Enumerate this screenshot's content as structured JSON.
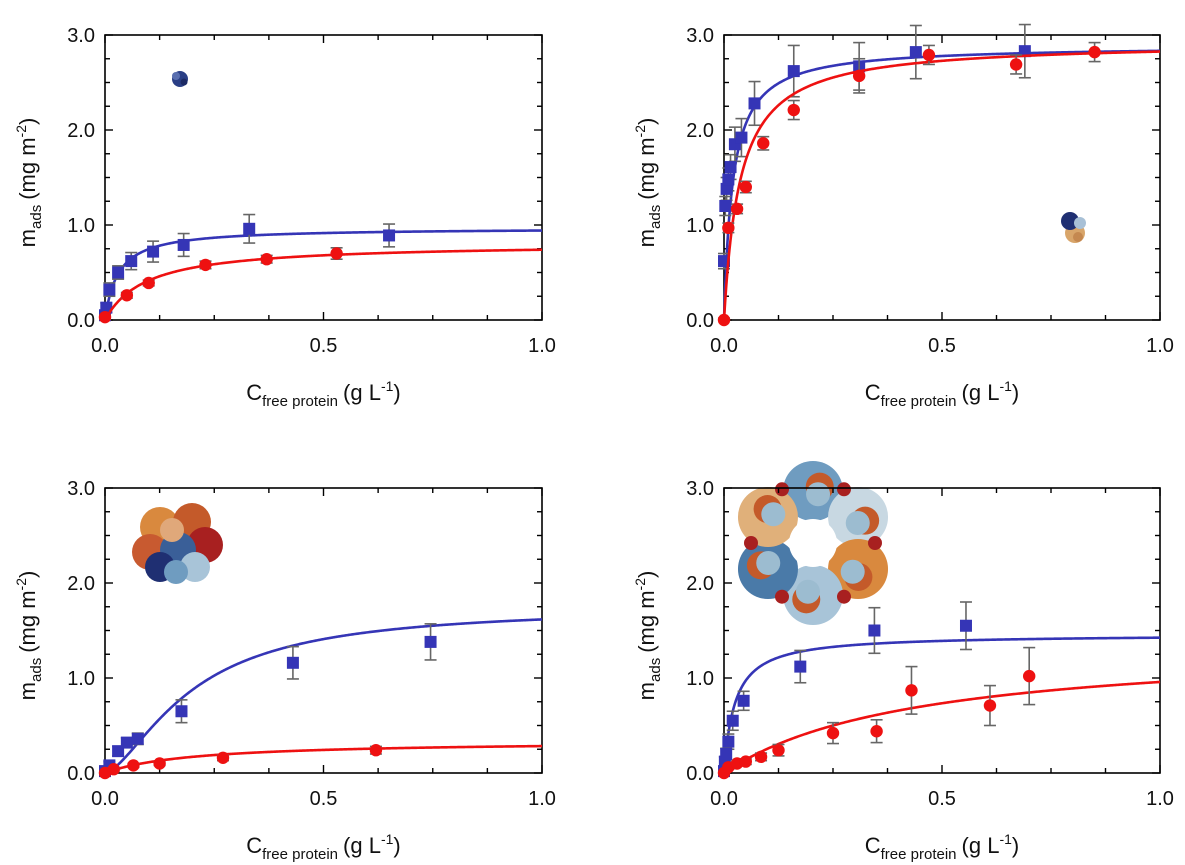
{
  "figure": {
    "panels": [
      {
        "id": "top-left"
      },
      {
        "id": "top-right"
      },
      {
        "id": "bottom-left"
      },
      {
        "id": "bottom-right"
      }
    ]
  },
  "axes": {
    "y_main": "m",
    "y_sub": "ads",
    "y_units_pre": "(mg m",
    "y_units_sup": "-2",
    "y_units_post": ")",
    "x_main": "C",
    "x_sub": "free protein",
    "x_units_pre": "(g L",
    "x_units_sup": "-1",
    "x_units_post": ")"
  },
  "colors": {
    "blue": "#3535b6",
    "red": "#ee1111",
    "error_bar": "#666666",
    "axis": "#000000"
  },
  "chart_data": [
    {
      "type": "scatter",
      "panel": "top-left",
      "xlim": [
        0,
        1.0
      ],
      "ylim": [
        0,
        3.0
      ],
      "x_ticks": [
        "0.0",
        "0.5",
        "1.0"
      ],
      "y_ticks": [
        "0.0",
        "1.0",
        "2.0",
        "3.0"
      ],
      "inset_icon": "small-globular-protein-icon",
      "series": [
        {
          "color": "blue",
          "marker": "square",
          "x": [
            0.0,
            0.003,
            0.01,
            0.03,
            0.06,
            0.11,
            0.18,
            0.33,
            0.65
          ],
          "y": [
            0.05,
            0.13,
            0.32,
            0.5,
            0.62,
            0.72,
            0.79,
            0.96,
            0.89
          ],
          "err": [
            0.04,
            0.05,
            0.07,
            0.07,
            0.09,
            0.11,
            0.12,
            0.15,
            0.12
          ],
          "fit_qmax": 0.97,
          "fit_k": 0.03
        },
        {
          "color": "red",
          "marker": "circle",
          "x": [
            0.0,
            0.05,
            0.1,
            0.23,
            0.37,
            0.53
          ],
          "y": [
            0.03,
            0.26,
            0.39,
            0.58,
            0.64,
            0.7
          ],
          "err": [
            0.02,
            0.03,
            0.03,
            0.04,
            0.04,
            0.06
          ],
          "fit_qmax": 0.81,
          "fit_k": 0.095
        }
      ]
    },
    {
      "type": "scatter",
      "panel": "top-right",
      "xlim": [
        0,
        1.0
      ],
      "ylim": [
        0,
        3.0
      ],
      "x_ticks": [
        "0.0",
        "0.5",
        "1.0"
      ],
      "y_ticks": [
        "0.0",
        "1.0",
        "2.0",
        "3.0"
      ],
      "inset_icon": "dimer-protein-icon",
      "series": [
        {
          "color": "blue",
          "marker": "square",
          "x": [
            0.0,
            0.003,
            0.006,
            0.01,
            0.015,
            0.025,
            0.04,
            0.07,
            0.16,
            0.31,
            0.44,
            0.69
          ],
          "y": [
            0.62,
            1.2,
            1.38,
            1.48,
            1.61,
            1.85,
            1.92,
            2.28,
            2.62,
            2.67,
            2.82,
            2.83
          ],
          "err": [
            0.08,
            0.1,
            0.12,
            0.12,
            0.13,
            0.18,
            0.2,
            0.23,
            0.27,
            0.25,
            0.28,
            0.28
          ],
          "fit_qmax": 2.89,
          "fit_k": 0.02
        },
        {
          "color": "red",
          "marker": "circle",
          "x": [
            0.0,
            0.01,
            0.03,
            0.05,
            0.09,
            0.16,
            0.31,
            0.47,
            0.67,
            0.85
          ],
          "y": [
            0.0,
            0.97,
            1.17,
            1.4,
            1.86,
            2.21,
            2.57,
            2.79,
            2.69,
            2.82
          ],
          "err": [
            0.02,
            0.05,
            0.05,
            0.06,
            0.07,
            0.1,
            0.18,
            0.1,
            0.1,
            0.1
          ],
          "fit_qmax": 2.93,
          "fit_k": 0.037
        }
      ]
    },
    {
      "type": "scatter",
      "panel": "bottom-left",
      "xlim": [
        0,
        1.0
      ],
      "ylim": [
        0,
        3.0
      ],
      "x_ticks": [
        "0.0",
        "0.5",
        "1.0"
      ],
      "y_ticks": [
        "0.0",
        "1.0",
        "2.0",
        "3.0"
      ],
      "inset_icon": "oligomer-protein-icon",
      "series": [
        {
          "color": "blue",
          "marker": "square",
          "x": [
            0.0,
            0.01,
            0.03,
            0.05,
            0.075,
            0.175,
            0.43,
            0.745
          ],
          "y": [
            0.02,
            0.08,
            0.23,
            0.32,
            0.36,
            0.65,
            1.16,
            1.38
          ],
          "err": [
            0.03,
            0.04,
            0.05,
            0.05,
            0.06,
            0.12,
            0.17,
            0.19
          ],
          "fit_qmax": 1.75,
          "fit_k": 0.2,
          "fit_n": 1.55
        },
        {
          "color": "red",
          "marker": "circle",
          "x": [
            0.0,
            0.02,
            0.065,
            0.125,
            0.27,
            0.62
          ],
          "y": [
            0.0,
            0.04,
            0.08,
            0.1,
            0.16,
            0.24
          ],
          "err": [
            0.01,
            0.02,
            0.02,
            0.02,
            0.03,
            0.04
          ],
          "fit_qmax": 0.34,
          "fit_k": 0.2
        }
      ]
    },
    {
      "type": "scatter",
      "panel": "bottom-right",
      "xlim": [
        0,
        1.0
      ],
      "ylim": [
        0,
        3.0
      ],
      "x_ticks": [
        "0.0",
        "0.5",
        "1.0"
      ],
      "y_ticks": [
        "0.0",
        "1.0",
        "2.0",
        "3.0"
      ],
      "inset_icon": "ring-assembly-protein-icon",
      "series": [
        {
          "color": "blue",
          "marker": "square",
          "x": [
            0.0,
            0.002,
            0.005,
            0.01,
            0.02,
            0.045,
            0.175,
            0.345,
            0.555
          ],
          "y": [
            0.02,
            0.12,
            0.2,
            0.33,
            0.55,
            0.76,
            1.12,
            1.5,
            1.55
          ],
          "err": [
            0.03,
            0.05,
            0.06,
            0.08,
            0.1,
            0.1,
            0.17,
            0.24,
            0.25
          ],
          "fit_qmax": 1.46,
          "fit_k": 0.025
        },
        {
          "color": "red",
          "marker": "circle",
          "x": [
            0.0,
            0.01,
            0.03,
            0.05,
            0.085,
            0.125,
            0.25,
            0.35,
            0.43,
            0.61,
            0.7
          ],
          "y": [
            0.0,
            0.06,
            0.1,
            0.12,
            0.17,
            0.24,
            0.42,
            0.44,
            0.87,
            0.71,
            1.02
          ],
          "err": [
            0.01,
            0.02,
            0.02,
            0.03,
            0.04,
            0.06,
            0.11,
            0.12,
            0.25,
            0.21,
            0.3
          ],
          "fit_qmax": 1.38,
          "fit_k": 0.44
        }
      ]
    }
  ]
}
